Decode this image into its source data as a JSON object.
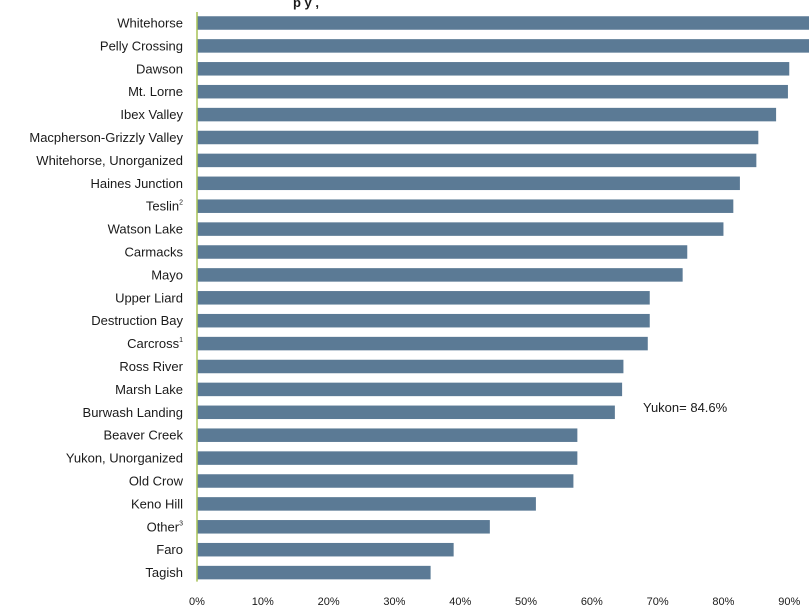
{
  "chart_data": {
    "type": "bar",
    "orientation": "horizontal",
    "title_fragment": "p      y                          ,",
    "categories": [
      {
        "label": "Whitehorse",
        "sup": ""
      },
      {
        "label": "Pelly Crossing",
        "sup": ""
      },
      {
        "label": "Dawson",
        "sup": ""
      },
      {
        "label": "Mt. Lorne",
        "sup": ""
      },
      {
        "label": "Ibex Valley",
        "sup": ""
      },
      {
        "label": "Macpherson-Grizzly Valley",
        "sup": ""
      },
      {
        "label": "Whitehorse, Unorganized",
        "sup": ""
      },
      {
        "label": "Haines Junction",
        "sup": ""
      },
      {
        "label": "Teslin",
        "sup": "2"
      },
      {
        "label": "Watson Lake",
        "sup": ""
      },
      {
        "label": "Carmacks",
        "sup": ""
      },
      {
        "label": "Mayo",
        "sup": ""
      },
      {
        "label": "Upper Liard",
        "sup": ""
      },
      {
        "label": "Destruction Bay",
        "sup": ""
      },
      {
        "label": "Carcross",
        "sup": "1"
      },
      {
        "label": "Ross River",
        "sup": ""
      },
      {
        "label": "Marsh Lake",
        "sup": ""
      },
      {
        "label": "Burwash Landing",
        "sup": ""
      },
      {
        "label": "Beaver Creek",
        "sup": ""
      },
      {
        "label": "Yukon, Unorganized",
        "sup": ""
      },
      {
        "label": "Old Crow",
        "sup": ""
      },
      {
        "label": "Keno Hill",
        "sup": ""
      },
      {
        "label": "Other",
        "sup": "3"
      },
      {
        "label": "Faro",
        "sup": ""
      },
      {
        "label": "Tagish",
        "sup": ""
      }
    ],
    "values": [
      93.5,
      93.2,
      90.0,
      89.8,
      88.0,
      85.3,
      85.0,
      82.5,
      81.5,
      80.0,
      74.5,
      73.8,
      68.8,
      68.8,
      68.5,
      64.8,
      64.6,
      63.5,
      57.8,
      57.8,
      57.2,
      51.5,
      44.5,
      39.0,
      35.5
    ],
    "x_ticks": [
      "0%",
      "10%",
      "20%",
      "30%",
      "40%",
      "50%",
      "60%",
      "70%",
      "80%",
      "90%"
    ],
    "xlim": [
      0,
      93
    ],
    "annotation": "Yukon= 84.6%",
    "bar_color": "#5b7a95",
    "axis_color": "#a7c256"
  }
}
